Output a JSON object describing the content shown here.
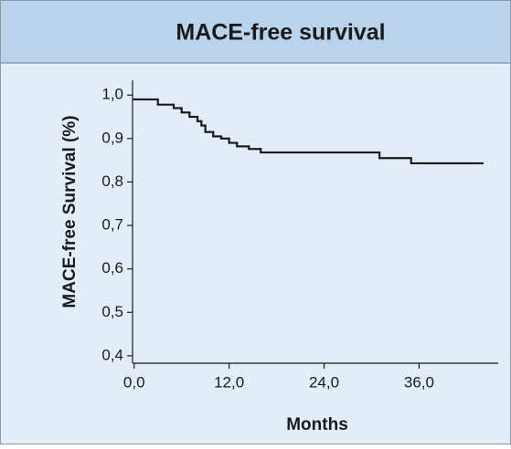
{
  "chart_data": {
    "type": "step",
    "title": "MACE-free survival",
    "x_label": "Months",
    "y_label": "MACE-free Survival (%)",
    "x": [
      0,
      3,
      5,
      6,
      7,
      8,
      8.5,
      9,
      10,
      11,
      12,
      13,
      14.5,
      16,
      31,
      35,
      44
    ],
    "values": [
      0.99,
      0.978,
      0.97,
      0.96,
      0.95,
      0.94,
      0.93,
      0.915,
      0.905,
      0.9,
      0.89,
      0.882,
      0.876,
      0.868,
      0.855,
      0.843,
      0.843
    ],
    "color": "#1a1a1a",
    "xlim": [
      -0.2,
      46
    ],
    "ylim": [
      0.383,
      1.034
    ],
    "xticks": [
      {
        "value": 0,
        "label": "0,0"
      },
      {
        "value": 12,
        "label": "12,0"
      },
      {
        "value": 24,
        "label": "24,0"
      },
      {
        "value": 36,
        "label": "36,0"
      }
    ],
    "yticks": [
      {
        "value": 0.4,
        "label": "0,4"
      },
      {
        "value": 0.5,
        "label": "0,5"
      },
      {
        "value": 0.6,
        "label": "0,6"
      },
      {
        "value": 0.7,
        "label": "0,7"
      },
      {
        "value": 0.8,
        "label": "0,8"
      },
      {
        "value": 0.9,
        "label": "0,9"
      },
      {
        "value": 1.0,
        "label": "1,0"
      }
    ]
  }
}
